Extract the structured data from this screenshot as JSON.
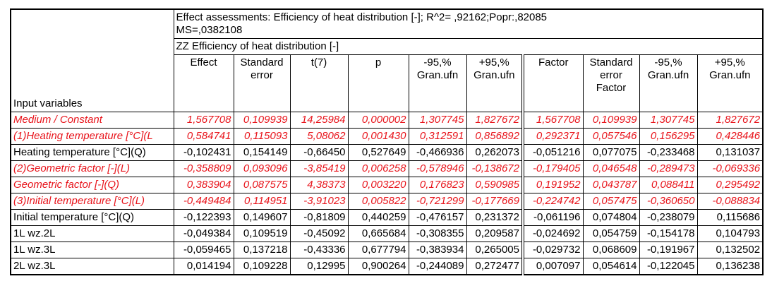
{
  "title_lines": [
    "Effect assessments: Efficiency of heat distribution [-]; R^2= ,92162;Popr:,82085",
    "MS=,0382108",
    "ZZ Efficiency of heat distribution [-]"
  ],
  "stub_header": "Input variables",
  "columns": [
    [
      "Effect"
    ],
    [
      "Standard",
      "error"
    ],
    [
      "t(7)"
    ],
    [
      "p"
    ],
    [
      "-95,%",
      "Gran.ufn"
    ],
    [
      "+95,%",
      "Gran.ufn"
    ],
    [
      "Factor"
    ],
    [
      "Standard",
      "error",
      "Factor"
    ],
    [
      "-95,%",
      "Gran.ufn"
    ],
    [
      "+95,%",
      "Gran.ufn"
    ]
  ],
  "highlight_color": "#e8141b",
  "rows": [
    {
      "label": "Medium / Constant",
      "highlighted": true,
      "values": [
        "1,567708",
        "0,109939",
        "14,25984",
        "0,000002",
        "1,307745",
        "1,827672",
        "1,567708",
        "0,109939",
        "1,307745",
        "1,827672"
      ]
    },
    {
      "label": "(1)Heating temperature [°C](L",
      "highlighted": true,
      "values": [
        "0,584741",
        "0,115093",
        "5,08062",
        "0,001430",
        "0,312591",
        "0,856892",
        "0,292371",
        "0,057546",
        "0,156295",
        "0,428446"
      ]
    },
    {
      "label": "Heating temperature [°C](Q)",
      "highlighted": false,
      "values": [
        "-0,102431",
        "0,154149",
        "-0,66450",
        "0,527649",
        "-0,466936",
        "0,262073",
        "-0,051216",
        "0,077075",
        "-0,233468",
        "0,131037"
      ]
    },
    {
      "label": "(2)Geometric factor [-](L)",
      "highlighted": true,
      "values": [
        "-0,358809",
        "0,093096",
        "-3,85419",
        "0,006258",
        "-0,578946",
        "-0,138672",
        "-0,179405",
        "0,046548",
        "-0,289473",
        "-0,069336"
      ]
    },
    {
      "label": "Geometric factor [-](Q)",
      "highlighted": true,
      "values": [
        "0,383904",
        "0,087575",
        "4,38373",
        "0,003220",
        "0,176823",
        "0,590985",
        "0,191952",
        "0,043787",
        "0,088411",
        "0,295492"
      ]
    },
    {
      "label": "(3)Initial temperature [°C](L)",
      "highlighted": true,
      "values": [
        "-0,449484",
        "0,114951",
        "-3,91023",
        "0,005822",
        "-0,721299",
        "-0,177669",
        "-0,224742",
        "0,057475",
        "-0,360650",
        "-0,088834"
      ]
    },
    {
      "label": "Initial temperature [°C](Q)",
      "highlighted": false,
      "values": [
        "-0,122393",
        "0,149607",
        "-0,81809",
        "0,440259",
        "-0,476157",
        "0,231372",
        "-0,061196",
        "0,074804",
        "-0,238079",
        "0,115686"
      ]
    },
    {
      "label": "1L wz.2L",
      "highlighted": false,
      "values": [
        "-0,049384",
        "0,109519",
        "-0,45092",
        "0,665684",
        "-0,308355",
        "0,209587",
        "-0,024692",
        "0,054759",
        "-0,154178",
        "0,104793"
      ]
    },
    {
      "label": "1L wz.3L",
      "highlighted": false,
      "values": [
        "-0,059465",
        "0,137218",
        "-0,43336",
        "0,677794",
        "-0,383934",
        "0,265005",
        "-0,029732",
        "0,068609",
        "-0,191967",
        "0,132502"
      ]
    },
    {
      "label": "2L wz.3L",
      "highlighted": false,
      "values": [
        "0,014194",
        "0,109228",
        "0,12995",
        "0,900264",
        "-0,244089",
        "0,272477",
        "0,007097",
        "0,054614",
        "-0,122045",
        "0,136238"
      ]
    }
  ]
}
